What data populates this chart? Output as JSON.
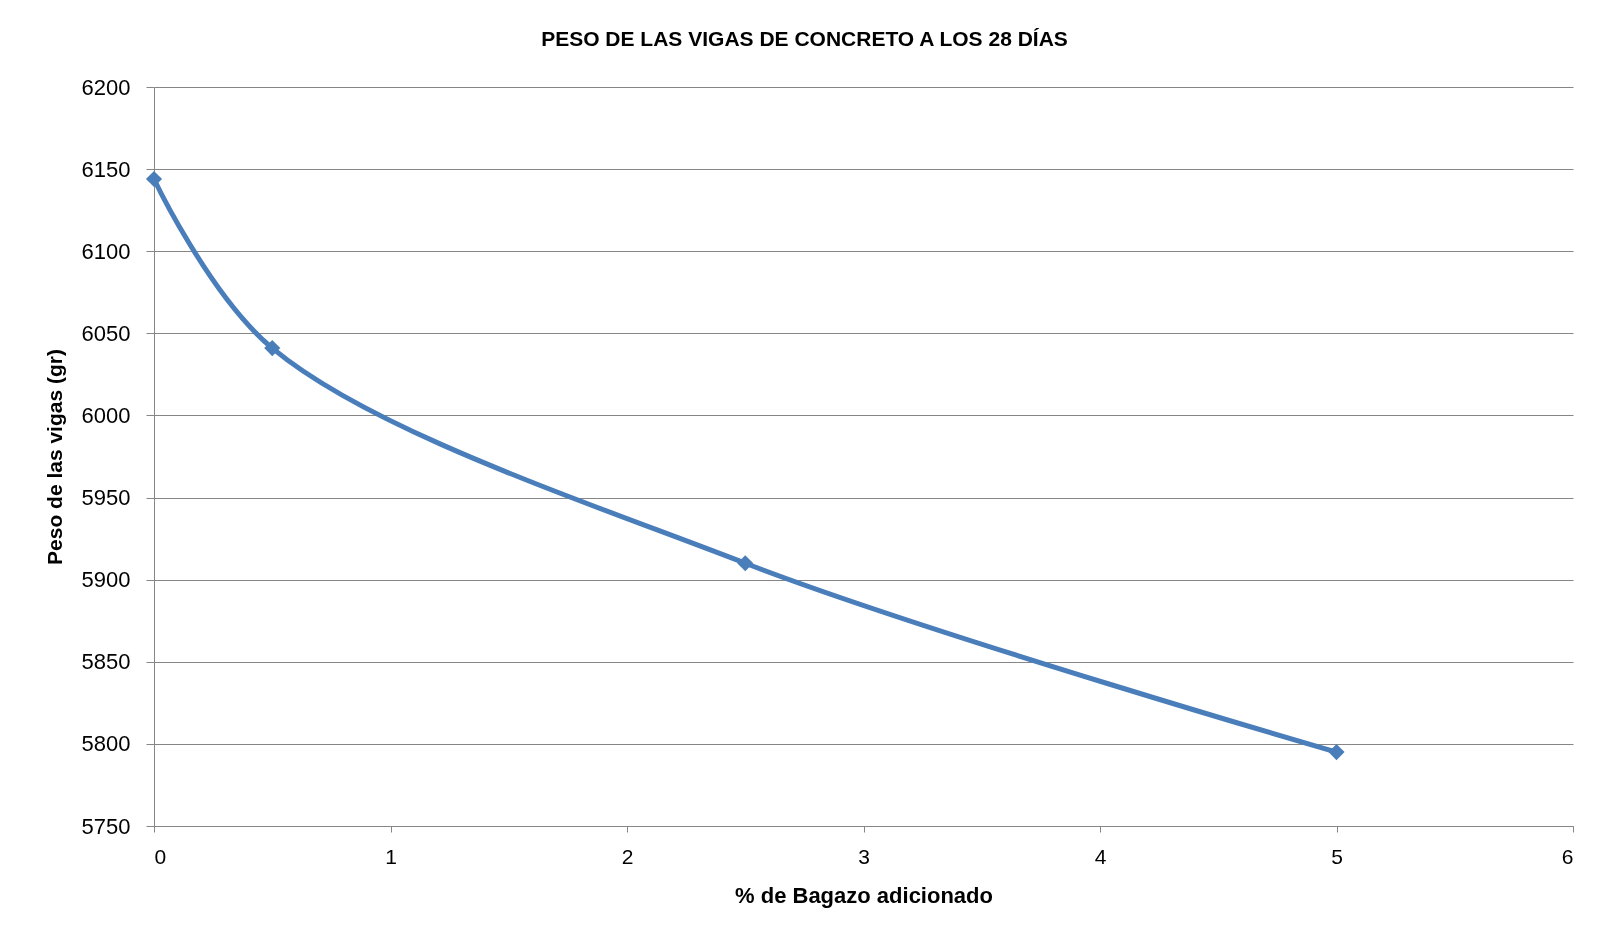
{
  "chart_data": {
    "type": "line",
    "title": "PESO DE LAS VIGAS DE CONCRETO A LOS 28 DÍAS",
    "xlabel": "% de Bagazo adicionado",
    "ylabel": "Peso de las vigas (gr)",
    "x": [
      0,
      0.5,
      2.5,
      5
    ],
    "series": [
      {
        "color": "#4a7ebb",
        "values": [
          6144,
          6041,
          5910,
          5795
        ]
      }
    ],
    "xlim": [
      0,
      6
    ],
    "xticks": [
      0,
      1,
      2,
      3,
      4,
      5,
      6
    ],
    "ylim": [
      5750,
      6200
    ],
    "yticks": [
      5750,
      5800,
      5850,
      5900,
      5950,
      6000,
      6050,
      6100,
      6150,
      6200
    ],
    "grid": "y",
    "marker": "diamond",
    "line_style": "solid"
  }
}
